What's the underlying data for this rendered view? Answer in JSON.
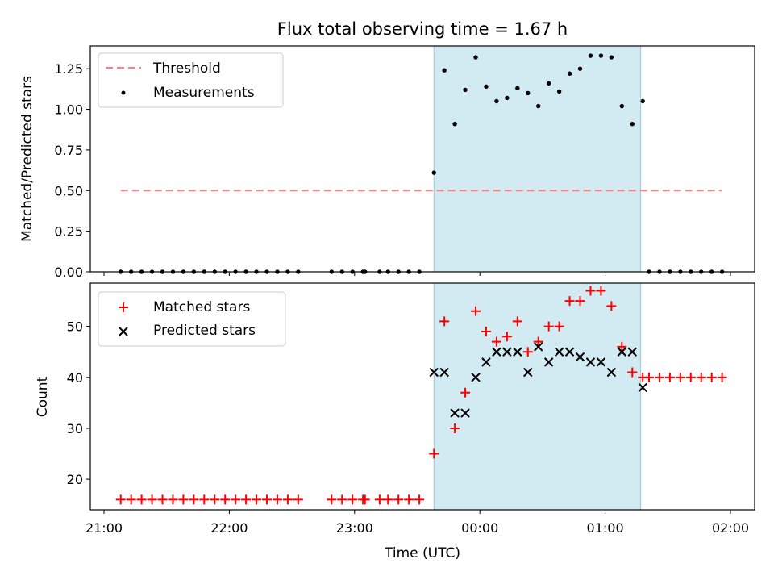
{
  "title": "Flux total observing time = 1.67 h",
  "colors": {
    "threshold": "#ff7f7f",
    "measurement": "#000000",
    "matched": "#ff0000",
    "predicted": "#000000",
    "observing_window": "#add8e6"
  },
  "chart_data": [
    {
      "type": "scatter",
      "ylabel": "Matched/Predicted stars",
      "xlabel": "",
      "ylim": [
        0,
        1.39
      ],
      "yticks": [
        0.0,
        0.25,
        0.5,
        0.75,
        1.0,
        1.25
      ],
      "ytick_labels": [
        "0.00",
        "0.25",
        "0.50",
        "0.75",
        "1.00",
        "1.25"
      ],
      "xlim": [
        "21:00",
        "02:00"
      ],
      "shaded_window": [
        "23:38",
        "01:17"
      ],
      "legend": {
        "placement": "top-left",
        "entries": [
          "Threshold",
          "Measurements"
        ]
      },
      "threshold": {
        "name": "Threshold",
        "value": 0.5,
        "x_range": [
          "21:08",
          "01:56"
        ]
      },
      "series": [
        {
          "name": "Measurements",
          "points": [
            [
              "21:08",
              0
            ],
            [
              "21:13",
              0
            ],
            [
              "21:18",
              0
            ],
            [
              "21:23",
              0
            ],
            [
              "21:28",
              0
            ],
            [
              "21:33",
              0
            ],
            [
              "21:38",
              0
            ],
            [
              "21:43",
              0
            ],
            [
              "21:48",
              0
            ],
            [
              "21:53",
              0
            ],
            [
              "21:58",
              0
            ],
            [
              "22:03",
              0
            ],
            [
              "22:08",
              0
            ],
            [
              "22:13",
              0
            ],
            [
              "22:18",
              0
            ],
            [
              "22:23",
              0
            ],
            [
              "22:28",
              0
            ],
            [
              "22:33",
              0
            ],
            [
              "22:49",
              0
            ],
            [
              "22:54",
              0
            ],
            [
              "22:59",
              0
            ],
            [
              "23:04",
              0
            ],
            [
              "23:05",
              0
            ],
            [
              "23:12",
              0
            ],
            [
              "23:16",
              0
            ],
            [
              "23:21",
              0
            ],
            [
              "23:26",
              0
            ],
            [
              "23:31",
              0
            ],
            [
              "23:38",
              0.61
            ],
            [
              "23:43",
              1.24
            ],
            [
              "23:48",
              0.91
            ],
            [
              "23:53",
              1.12
            ],
            [
              "23:58",
              1.32
            ],
            [
              "00:03",
              1.14
            ],
            [
              "00:08",
              1.05
            ],
            [
              "00:13",
              1.07
            ],
            [
              "00:18",
              1.13
            ],
            [
              "00:23",
              1.1
            ],
            [
              "00:28",
              1.02
            ],
            [
              "00:33",
              1.16
            ],
            [
              "00:38",
              1.11
            ],
            [
              "00:43",
              1.22
            ],
            [
              "00:48",
              1.25
            ],
            [
              "00:53",
              1.33
            ],
            [
              "00:58",
              1.33
            ],
            [
              "01:03",
              1.32
            ],
            [
              "01:08",
              1.02
            ],
            [
              "01:13",
              0.91
            ],
            [
              "01:18",
              1.05
            ],
            [
              "01:21",
              0
            ],
            [
              "01:26",
              0
            ],
            [
              "01:31",
              0
            ],
            [
              "01:36",
              0
            ],
            [
              "01:41",
              0
            ],
            [
              "01:46",
              0
            ],
            [
              "01:51",
              0
            ],
            [
              "01:56",
              0
            ]
          ]
        }
      ]
    },
    {
      "type": "scatter",
      "ylabel": "Count",
      "xlabel": "Time (UTC)",
      "ylim": [
        14,
        58.5
      ],
      "yticks": [
        20,
        30,
        40,
        50
      ],
      "ytick_labels": [
        "20",
        "30",
        "40",
        "50"
      ],
      "xlim": [
        "21:00",
        "02:00"
      ],
      "xticks": [
        "21:00",
        "22:00",
        "23:00",
        "00:00",
        "01:00",
        "02:00"
      ],
      "shaded_window": [
        "23:38",
        "01:17"
      ],
      "legend": {
        "placement": "top-left",
        "entries": [
          "Matched stars",
          "Predicted stars"
        ]
      },
      "series": [
        {
          "name": "Matched stars",
          "points": [
            [
              "21:08",
              16
            ],
            [
              "21:13",
              16
            ],
            [
              "21:18",
              16
            ],
            [
              "21:23",
              16
            ],
            [
              "21:28",
              16
            ],
            [
              "21:33",
              16
            ],
            [
              "21:38",
              16
            ],
            [
              "21:43",
              16
            ],
            [
              "21:48",
              16
            ],
            [
              "21:53",
              16
            ],
            [
              "21:58",
              16
            ],
            [
              "22:03",
              16
            ],
            [
              "22:08",
              16
            ],
            [
              "22:13",
              16
            ],
            [
              "22:18",
              16
            ],
            [
              "22:23",
              16
            ],
            [
              "22:28",
              16
            ],
            [
              "22:33",
              16
            ],
            [
              "22:49",
              16
            ],
            [
              "22:54",
              16
            ],
            [
              "22:59",
              16
            ],
            [
              "23:04",
              16
            ],
            [
              "23:05",
              16
            ],
            [
              "23:12",
              16
            ],
            [
              "23:16",
              16
            ],
            [
              "23:21",
              16
            ],
            [
              "23:26",
              16
            ],
            [
              "23:31",
              16
            ],
            [
              "23:38",
              25
            ],
            [
              "23:43",
              51
            ],
            [
              "23:48",
              30
            ],
            [
              "23:53",
              37
            ],
            [
              "23:58",
              53
            ],
            [
              "00:03",
              49
            ],
            [
              "00:08",
              47
            ],
            [
              "00:13",
              48
            ],
            [
              "00:18",
              51
            ],
            [
              "00:23",
              45
            ],
            [
              "00:28",
              47
            ],
            [
              "00:33",
              50
            ],
            [
              "00:38",
              50
            ],
            [
              "00:43",
              55
            ],
            [
              "00:48",
              55
            ],
            [
              "00:53",
              57
            ],
            [
              "00:58",
              57
            ],
            [
              "01:03",
              54
            ],
            [
              "01:08",
              46
            ],
            [
              "01:13",
              41
            ],
            [
              "01:18",
              40
            ],
            [
              "01:21",
              40
            ],
            [
              "01:26",
              40
            ],
            [
              "01:31",
              40
            ],
            [
              "01:36",
              40
            ],
            [
              "01:41",
              40
            ],
            [
              "01:46",
              40
            ],
            [
              "01:51",
              40
            ],
            [
              "01:56",
              40
            ]
          ]
        },
        {
          "name": "Predicted stars",
          "points": [
            [
              "23:38",
              41
            ],
            [
              "23:43",
              41
            ],
            [
              "23:48",
              33
            ],
            [
              "23:53",
              33
            ],
            [
              "23:58",
              40
            ],
            [
              "00:03",
              43
            ],
            [
              "00:08",
              45
            ],
            [
              "00:13",
              45
            ],
            [
              "00:18",
              45
            ],
            [
              "00:23",
              41
            ],
            [
              "00:28",
              46
            ],
            [
              "00:33",
              43
            ],
            [
              "00:38",
              45
            ],
            [
              "00:43",
              45
            ],
            [
              "00:48",
              44
            ],
            [
              "00:53",
              43
            ],
            [
              "00:58",
              43
            ],
            [
              "01:03",
              41
            ],
            [
              "01:08",
              45
            ],
            [
              "01:13",
              45
            ],
            [
              "01:18",
              38
            ]
          ]
        }
      ]
    }
  ]
}
